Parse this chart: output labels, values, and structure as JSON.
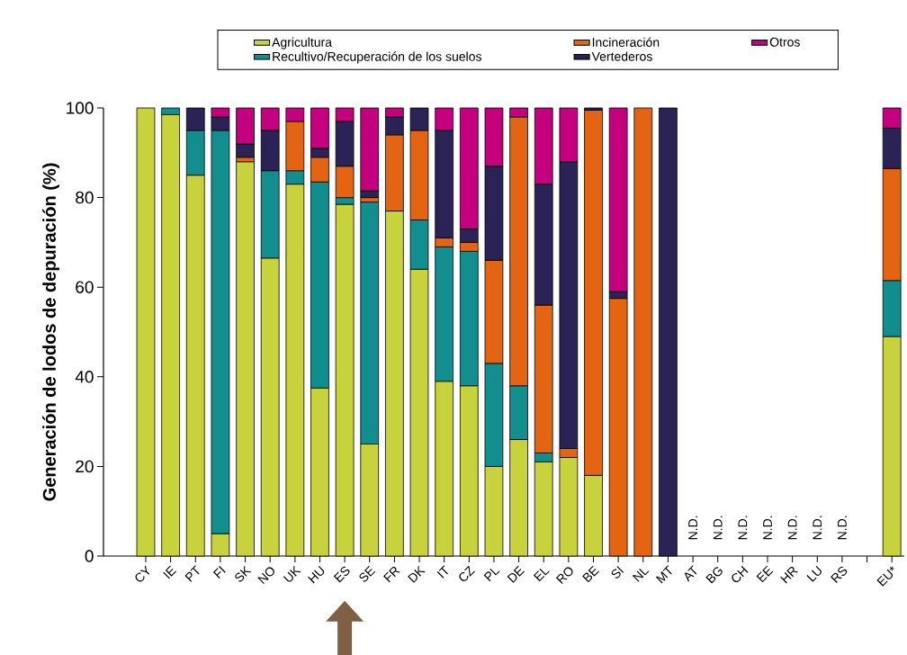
{
  "chart_data": {
    "type": "bar",
    "stacked": true,
    "ylabel": "Generación de lodos de depuración (%)",
    "categories": [
      "CY",
      "IE",
      "PT",
      "FI",
      "SK",
      "NO",
      "UK",
      "HU",
      "ES",
      "SE",
      "FR",
      "DK",
      "IT",
      "CZ",
      "PL",
      "DE",
      "EL",
      "RO",
      "BE",
      "SI",
      "NL",
      "MT",
      "AT",
      "BG",
      "CH",
      "EE",
      "HR",
      "LU",
      "RS",
      null,
      "EU*"
    ],
    "series": [
      {
        "name": "Agricultura",
        "color": "#c8d23c",
        "values": [
          100,
          98.5,
          85,
          5,
          88,
          66.5,
          83,
          37.5,
          78.5,
          25,
          77,
          64,
          39,
          38,
          20,
          26,
          21,
          22,
          18,
          null,
          null,
          null,
          null,
          null,
          null,
          null,
          null,
          null,
          null,
          null,
          49
        ]
      },
      {
        "name": "Recultivo/Recuperación de los suelos",
        "color": "#138e8e",
        "values": [
          null,
          1.5,
          10,
          90,
          null,
          19.5,
          3,
          46,
          1.5,
          54,
          null,
          11,
          30,
          30,
          23,
          12,
          2,
          null,
          null,
          null,
          null,
          null,
          null,
          null,
          null,
          null,
          null,
          null,
          null,
          null,
          12.5
        ]
      },
      {
        "name": "Incineración",
        "color": "#e36513",
        "values": [
          null,
          null,
          null,
          null,
          1,
          null,
          11,
          5.5,
          7,
          1,
          17,
          20,
          2,
          2,
          23,
          60,
          33,
          2,
          81.5,
          57.5,
          100,
          null,
          null,
          null,
          null,
          null,
          null,
          null,
          null,
          null,
          25
        ]
      },
      {
        "name": "Vertederos",
        "color": "#2b2255",
        "values": [
          null,
          null,
          5,
          3,
          3,
          9,
          null,
          2,
          10,
          1.5,
          4,
          5,
          24,
          3,
          21,
          null,
          27,
          64,
          0.5,
          1.5,
          null,
          100,
          null,
          null,
          null,
          null,
          null,
          null,
          null,
          null,
          9
        ]
      },
      {
        "name": "Otros",
        "color": "#c4007f",
        "values": [
          null,
          null,
          null,
          2,
          8,
          5,
          3,
          9,
          3,
          18.5,
          2,
          null,
          5,
          27,
          13,
          2,
          17,
          12,
          null,
          41,
          null,
          null,
          null,
          null,
          null,
          null,
          null,
          null,
          null,
          null,
          4.5
        ]
      }
    ],
    "annotations": [
      "N.D.",
      "N.D.",
      "N.D.",
      "N.D.",
      "N.D.",
      "N.D.",
      "N.D."
    ],
    "ylim": [
      0,
      100
    ],
    "yticks": [
      0,
      20,
      40,
      60,
      80,
      100
    ],
    "grid": false,
    "legend": "top"
  }
}
